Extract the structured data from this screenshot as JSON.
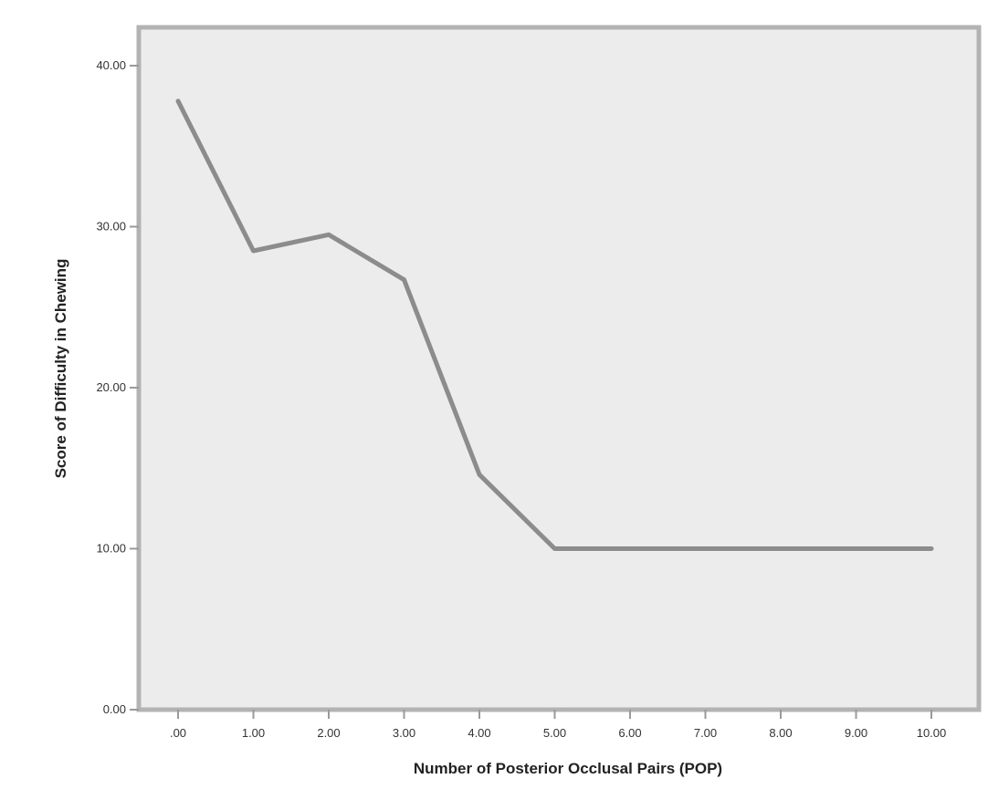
{
  "chart_data": {
    "type": "line",
    "xlabel": "Number of Posterior Occlusal Pairs (POP)",
    "ylabel": "Score of Difficulty in Chewing",
    "x_tick_labels": [
      ".00",
      "1.00",
      "2.00",
      "3.00",
      "4.00",
      "5.00",
      "6.00",
      "7.00",
      "8.00",
      "9.00",
      "10.00"
    ],
    "y_tick_labels": [
      "0.00",
      "10.00",
      "20.00",
      "30.00",
      "40.00"
    ],
    "y_ticks": [
      0,
      10,
      20,
      30,
      40
    ],
    "xlim": [
      0,
      10
    ],
    "ylim": [
      0,
      40
    ],
    "grid": false,
    "series": [
      {
        "x": [
          0,
          1,
          2,
          3,
          4,
          5,
          6,
          7,
          8,
          9,
          10
        ],
        "values": [
          37.8,
          28.5,
          29.5,
          26.7,
          14.6,
          10.0,
          10.0,
          10.0,
          10.0,
          10.0,
          10.0
        ]
      }
    ],
    "colors": {
      "line": "#8c8c8c",
      "plot_background": "#ececec",
      "frame": "#b3b3b3",
      "axis": "#9a9a9a"
    }
  }
}
